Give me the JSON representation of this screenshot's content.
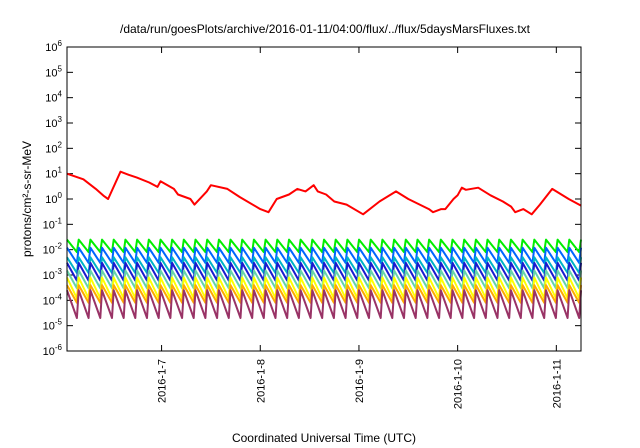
{
  "chart_data": {
    "type": "line",
    "title": "/data/run/goesPlots/archive/2016-01-11/04:00/flux/../flux/5daysMarsFluxes.txt",
    "xlabel": "Coordinated Universal Time (UTC)",
    "ylabel": "protons/cm²-s-sr-MeV",
    "y_scale": "log",
    "ylim": [
      1e-06,
      1000000.0
    ],
    "y_ticks": [
      {
        "value": 1e-06,
        "base": "10",
        "exp": "-6"
      },
      {
        "value": 1e-05,
        "base": "10",
        "exp": "-5"
      },
      {
        "value": 0.0001,
        "base": "10",
        "exp": "-4"
      },
      {
        "value": 0.001,
        "base": "10",
        "exp": "-3"
      },
      {
        "value": 0.01,
        "base": "10",
        "exp": "-2"
      },
      {
        "value": 0.1,
        "base": "10",
        "exp": "-1"
      },
      {
        "value": 1,
        "base": "10",
        "exp": "0"
      },
      {
        "value": 10,
        "base": "10",
        "exp": "1"
      },
      {
        "value": 100,
        "base": "10",
        "exp": "2"
      },
      {
        "value": 1000,
        "base": "10",
        "exp": "3"
      },
      {
        "value": 10000,
        "base": "10",
        "exp": "4"
      },
      {
        "value": 100000,
        "base": "10",
        "exp": "5"
      },
      {
        "value": 1000000,
        "base": "10",
        "exp": "6"
      }
    ],
    "xlim": [
      "2016-01-06 01:00",
      "2016-01-11 06:00"
    ],
    "x_ticks": [
      "2016-1-7",
      "2016-1-8",
      "2016-1-9",
      "2016-1-10",
      "2016-1-11"
    ],
    "grid": false,
    "legend": "none",
    "series": [
      {
        "color": "#ff0000",
        "x": [
          "2016-01-06 01:00",
          "2016-01-06 05:00",
          "2016-01-06 08:00",
          "2016-01-06 10:00",
          "2016-01-06 11:00",
          "2016-01-06 14:00",
          "2016-01-06 16:00",
          "2016-01-06 18:00",
          "2016-01-06 21:00",
          "2016-01-06 23:00",
          "2016-01-06 23:45",
          "2016-01-07 03:00",
          "2016-01-07 04:00",
          "2016-01-07 07:00",
          "2016-01-07 08:00",
          "2016-01-07 11:00",
          "2016-01-07 12:00",
          "2016-01-07 16:00",
          "2016-01-07 19:00",
          "2016-01-08 00:00",
          "2016-01-08 02:00",
          "2016-01-08 04:00",
          "2016-01-08 07:00",
          "2016-01-08 09:00",
          "2016-01-08 11:00",
          "2016-01-08 13:00",
          "2016-01-08 14:00",
          "2016-01-08 16:00",
          "2016-01-08 18:00",
          "2016-01-08 21:00",
          "2016-01-09 01:00",
          "2016-01-09 05:00",
          "2016-01-09 09:00",
          "2016-01-09 12:00",
          "2016-01-09 17:00",
          "2016-01-09 18:00",
          "2016-01-09 20:00",
          "2016-01-09 21:00",
          "2016-01-09 23:00",
          "2016-01-10 00:00",
          "2016-01-10 01:00",
          "2016-01-10 02:00",
          "2016-01-10 05:00",
          "2016-01-10 08:00",
          "2016-01-10 11:00",
          "2016-01-10 13:00",
          "2016-01-10 14:00",
          "2016-01-10 16:00",
          "2016-01-10 18:00",
          "2016-01-10 20:00",
          "2016-01-10 23:00",
          "2016-01-11 03:00",
          "2016-01-11 06:00"
        ],
        "y": [
          10.0,
          6.0,
          2.5,
          1.3,
          1.0,
          12.0,
          9.0,
          7.0,
          4.5,
          3.0,
          5.0,
          2.5,
          1.5,
          1.0,
          0.6,
          2.0,
          3.5,
          2.5,
          1.2,
          0.4,
          0.3,
          1.0,
          1.5,
          2.5,
          2.0,
          3.5,
          2.0,
          1.5,
          0.8,
          0.6,
          0.25,
          0.8,
          2.0,
          1.0,
          0.4,
          0.3,
          0.4,
          0.4,
          1.0,
          1.4,
          2.8,
          2.3,
          2.8,
          1.4,
          0.8,
          0.5,
          0.3,
          0.4,
          0.25,
          0.6,
          2.5,
          1.0,
          0.55
        ]
      }
    ],
    "periodic_series": [
      {
        "color": "#00ee00",
        "peak": 0.025,
        "trough": 0.008,
        "cycles": 44
      },
      {
        "color": "#0066ff",
        "peak": 0.012,
        "trough": 0.003,
        "cycles": 44
      },
      {
        "color": "#00b4c8",
        "peak": 0.005,
        "trough": 0.0012,
        "cycles": 44
      },
      {
        "color": "#1a1ad0",
        "peak": 0.003,
        "trough": 0.0006,
        "cycles": 44
      },
      {
        "color": "#66d4aa",
        "peak": 0.0015,
        "trough": 0.0003,
        "cycles": 44
      },
      {
        "color": "#ffff00",
        "peak": 0.0008,
        "trough": 0.00012,
        "cycles": 44
      },
      {
        "color": "#ffaa00",
        "peak": 0.0004,
        "trough": 8e-05,
        "cycles": 44
      },
      {
        "color": "#993366",
        "peak": 0.00025,
        "trough": 2e-05,
        "cycles": 44
      }
    ]
  }
}
